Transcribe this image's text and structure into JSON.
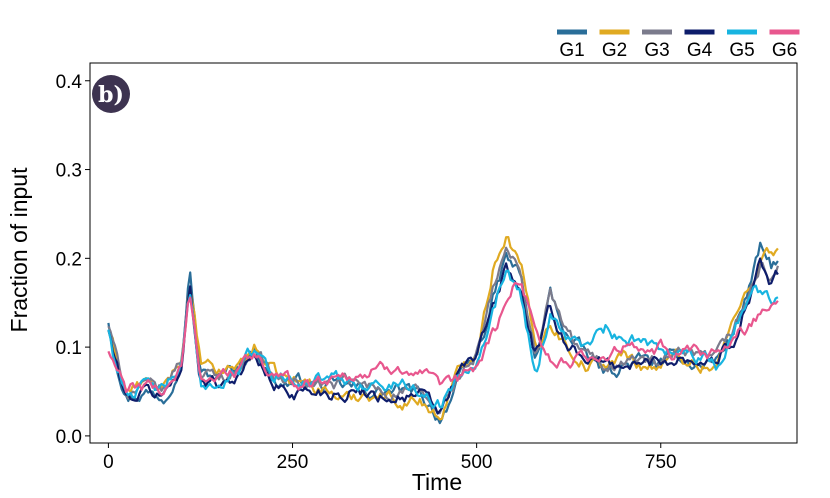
{
  "chart_data": {
    "type": "line",
    "panel_label": "b)",
    "xlabel": "Time",
    "ylabel": "Fraction of input",
    "xlim": [
      -25,
      935
    ],
    "ylim": [
      -0.008,
      0.42
    ],
    "xticks": [
      0,
      250,
      500,
      750
    ],
    "yticks": [
      0.0,
      0.1,
      0.2,
      0.3,
      0.4
    ],
    "ytick_labels": [
      "0.0",
      "0.1",
      "0.2",
      "0.3",
      "0.4"
    ],
    "legend_position": "top-right, above plot",
    "grid": false,
    "x_knots": [
      0,
      10,
      25,
      50,
      75,
      100,
      110,
      125,
      150,
      175,
      200,
      225,
      250,
      275,
      300,
      325,
      350,
      375,
      400,
      425,
      450,
      475,
      500,
      525,
      540,
      560,
      580,
      600,
      625,
      650,
      675,
      700,
      725,
      750,
      775,
      800,
      825,
      850,
      875,
      885,
      900,
      910
    ],
    "series": [
      {
        "name": "G1",
        "color": "#2a6e99",
        "values": [
          0.13,
          0.09,
          0.045,
          0.05,
          0.045,
          0.09,
          0.19,
          0.07,
          0.065,
          0.08,
          0.1,
          0.06,
          0.06,
          0.06,
          0.055,
          0.055,
          0.05,
          0.05,
          0.05,
          0.045,
          0.02,
          0.06,
          0.09,
          0.16,
          0.2,
          0.18,
          0.08,
          0.16,
          0.11,
          0.09,
          0.07,
          0.08,
          0.085,
          0.08,
          0.09,
          0.08,
          0.085,
          0.12,
          0.18,
          0.21,
          0.19,
          0.2
        ]
      },
      {
        "name": "G2",
        "color": "#e0aa22",
        "values": [
          0.12,
          0.09,
          0.05,
          0.06,
          0.05,
          0.09,
          0.17,
          0.08,
          0.07,
          0.08,
          0.1,
          0.07,
          0.06,
          0.06,
          0.05,
          0.04,
          0.05,
          0.045,
          0.04,
          0.04,
          0.02,
          0.07,
          0.1,
          0.2,
          0.23,
          0.19,
          0.1,
          0.13,
          0.1,
          0.08,
          0.08,
          0.09,
          0.08,
          0.08,
          0.09,
          0.08,
          0.08,
          0.13,
          0.18,
          0.2,
          0.21,
          0.21
        ]
      },
      {
        "name": "G3",
        "color": "#7b7b8c",
        "values": [
          0.125,
          0.09,
          0.05,
          0.055,
          0.05,
          0.09,
          0.17,
          0.07,
          0.065,
          0.075,
          0.1,
          0.065,
          0.06,
          0.06,
          0.055,
          0.06,
          0.055,
          0.05,
          0.05,
          0.045,
          0.025,
          0.065,
          0.09,
          0.17,
          0.21,
          0.18,
          0.09,
          0.16,
          0.11,
          0.09,
          0.08,
          0.085,
          0.085,
          0.08,
          0.09,
          0.085,
          0.085,
          0.12,
          0.17,
          0.19,
          0.18,
          0.19
        ]
      },
      {
        "name": "G4",
        "color": "#0e1d6b",
        "values": [
          0.12,
          0.08,
          0.04,
          0.05,
          0.045,
          0.08,
          0.17,
          0.065,
          0.06,
          0.07,
          0.09,
          0.055,
          0.05,
          0.05,
          0.05,
          0.05,
          0.05,
          0.045,
          0.045,
          0.045,
          0.025,
          0.07,
          0.09,
          0.15,
          0.19,
          0.16,
          0.09,
          0.14,
          0.1,
          0.09,
          0.08,
          0.08,
          0.08,
          0.085,
          0.09,
          0.085,
          0.085,
          0.11,
          0.17,
          0.2,
          0.17,
          0.18
        ]
      },
      {
        "name": "G5",
        "color": "#18b4e0",
        "values": [
          0.12,
          0.08,
          0.05,
          0.055,
          0.05,
          0.08,
          0.16,
          0.06,
          0.06,
          0.07,
          0.1,
          0.065,
          0.07,
          0.06,
          0.065,
          0.06,
          0.06,
          0.055,
          0.06,
          0.05,
          0.035,
          0.07,
          0.09,
          0.15,
          0.19,
          0.16,
          0.07,
          0.14,
          0.11,
          0.1,
          0.12,
          0.1,
          0.11,
          0.1,
          0.1,
          0.09,
          0.08,
          0.12,
          0.17,
          0.16,
          0.15,
          0.16
        ]
      },
      {
        "name": "G6",
        "color": "#e8578e",
        "values": [
          0.095,
          0.075,
          0.05,
          0.055,
          0.05,
          0.08,
          0.16,
          0.07,
          0.065,
          0.075,
          0.09,
          0.065,
          0.06,
          0.06,
          0.065,
          0.07,
          0.07,
          0.075,
          0.08,
          0.07,
          0.05,
          0.06,
          0.08,
          0.12,
          0.15,
          0.18,
          0.12,
          0.09,
          0.08,
          0.09,
          0.09,
          0.1,
          0.09,
          0.1,
          0.09,
          0.09,
          0.09,
          0.11,
          0.13,
          0.14,
          0.15,
          0.155
        ]
      }
    ]
  },
  "colors": {
    "badge_fill": "#3d3350",
    "axis": "#000000"
  }
}
